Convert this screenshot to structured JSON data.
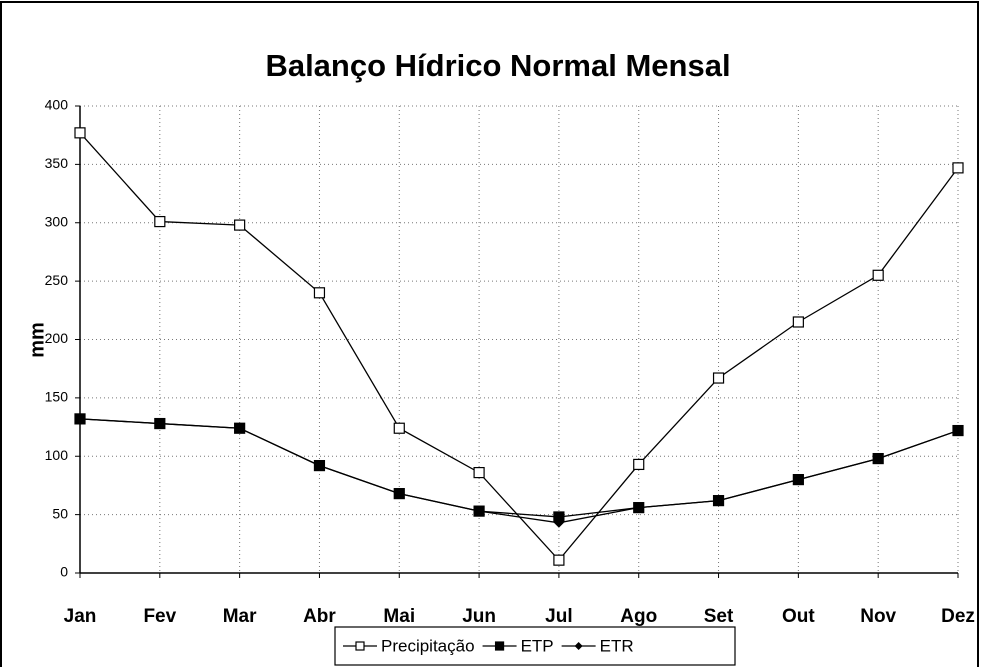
{
  "chart_data": {
    "type": "line",
    "title": "Balanço Hídrico Normal Mensal",
    "y_label": "mm",
    "categories": [
      "Jan",
      "Fev",
      "Mar",
      "Abr",
      "Mai",
      "Jun",
      "Jul",
      "Ago",
      "Set",
      "Out",
      "Nov",
      "Dez"
    ],
    "series": [
      {
        "name": "Precipitação",
        "color": "#000000",
        "marker": "open-square",
        "values": [
          377,
          301,
          298,
          240,
          124,
          86,
          11,
          93,
          167,
          215,
          255,
          347
        ]
      },
      {
        "name": "ETP",
        "color": "#000000",
        "marker": "filled-square",
        "values": [
          132,
          128,
          124,
          92,
          68,
          53,
          48,
          56,
          62,
          80,
          98,
          122
        ]
      },
      {
        "name": "ETR",
        "color": "#000000",
        "marker": "diamond",
        "values": [
          132,
          128,
          124,
          92,
          68,
          53,
          43,
          56,
          62,
          80,
          98,
          122
        ]
      }
    ],
    "ylim": [
      0,
      400
    ],
    "yticks": [
      0,
      50,
      100,
      150,
      200,
      250,
      300,
      350,
      400
    ],
    "grid": true,
    "legend": "bottom"
  }
}
